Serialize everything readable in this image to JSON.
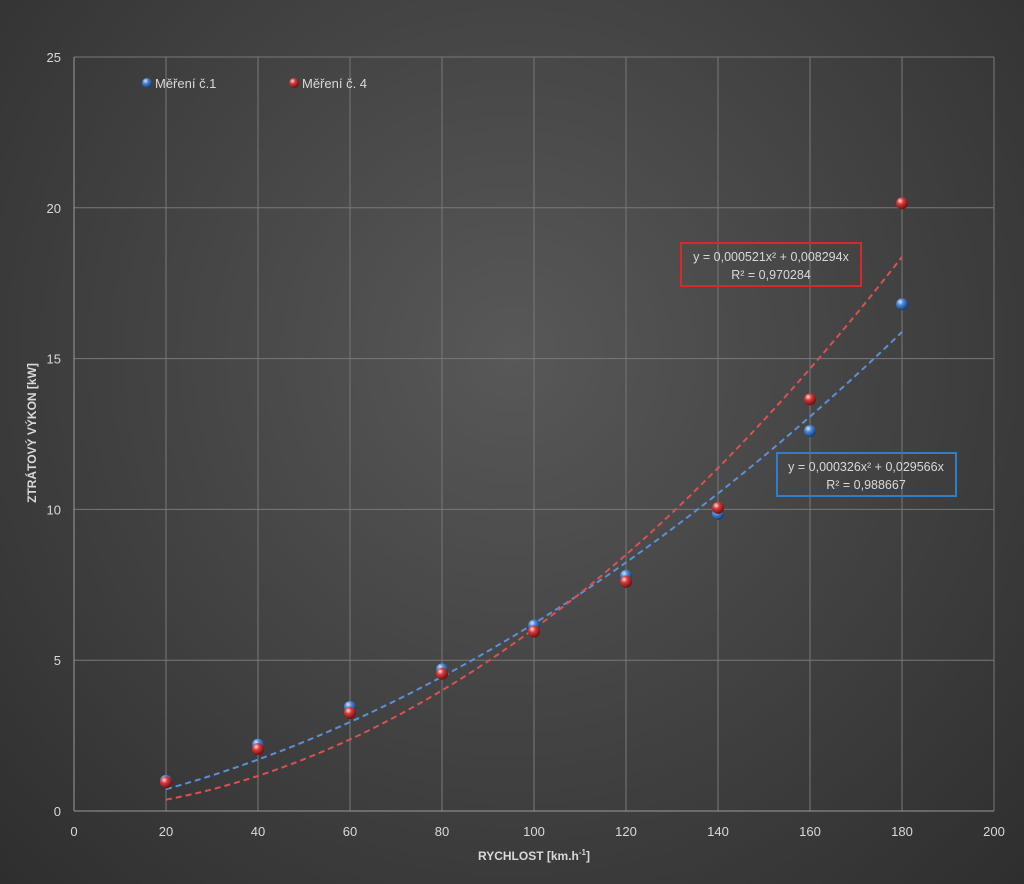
{
  "chart_data": {
    "type": "scatter",
    "title": "",
    "xlabel": "RYCHLOST [km.h",
    "xlabel_sup": "-1",
    "xlabel_end": "]",
    "ylabel": "ZTRÁTOVÝ VÝKON [kW]",
    "xlim": [
      0,
      200
    ],
    "ylim": [
      0,
      25
    ],
    "x_ticks": [
      "0",
      "20",
      "40",
      "60",
      "80",
      "100",
      "120",
      "140",
      "160",
      "180",
      "200"
    ],
    "y_ticks": [
      "0",
      "5",
      "10",
      "15",
      "20",
      "25"
    ],
    "grid": true,
    "legend_position": "top-left",
    "series": [
      {
        "name": "Měření č.1",
        "color": "#4a86d4",
        "x": [
          20,
          40,
          60,
          80,
          100,
          120,
          140,
          160,
          180
        ],
        "y": [
          1.0,
          2.2,
          3.45,
          4.7,
          6.15,
          7.8,
          9.85,
          12.6,
          16.8
        ],
        "trendline": {
          "a": 0.000326,
          "b": 0.029566,
          "equation": "y = 0,000326x² + 0,029566x",
          "r2": "R² = 0,988667",
          "box_color": "#2f7fc8"
        }
      },
      {
        "name": "Měření č. 4",
        "color": "#d63a3a",
        "x": [
          20,
          40,
          60,
          80,
          100,
          120,
          140,
          160,
          180
        ],
        "y": [
          0.95,
          2.05,
          3.25,
          4.55,
          5.95,
          7.6,
          10.05,
          13.65,
          20.15
        ],
        "trendline": {
          "a": 0.000521,
          "b": 0.008294,
          "equation": "y = 0,000521x² + 0,008294x",
          "r2": "R² = 0,970284",
          "box_color": "#d42a2a"
        }
      }
    ]
  }
}
